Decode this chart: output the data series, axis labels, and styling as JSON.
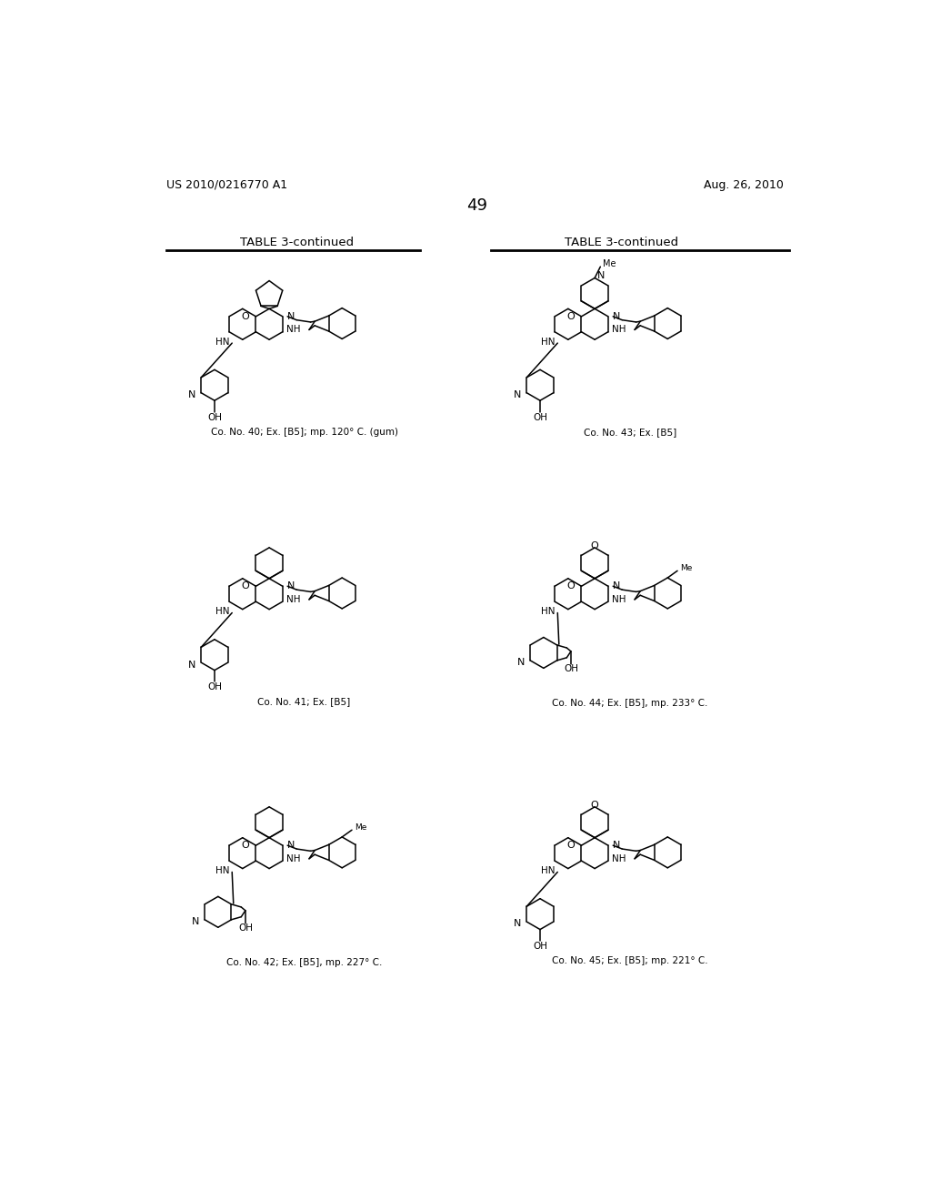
{
  "patent_number": "US 2010/0216770 A1",
  "date": "Aug. 26, 2010",
  "page_number": "49",
  "table_title": "TABLE 3-continued",
  "bg_color": "#ffffff",
  "compounds": [
    {
      "id": "40",
      "label": "Co. No. 40; Ex. [B5]; mp. 120° C. (gum)",
      "col": 0,
      "row": 0
    },
    {
      "id": "43",
      "label": "Co. No. 43; Ex. [B5]",
      "col": 1,
      "row": 0
    },
    {
      "id": "41",
      "label": "Co. No. 41; Ex. [B5]",
      "col": 0,
      "row": 1
    },
    {
      "id": "44",
      "label": "Co. No. 44; Ex. [B5], mp. 233° C.",
      "col": 1,
      "row": 1
    },
    {
      "id": "42",
      "label": "Co. No. 42; Ex. [B5], mp. 227° C.",
      "col": 0,
      "row": 2
    },
    {
      "id": "45",
      "label": "Co. No. 45; Ex. [B5]; mp. 221° C.",
      "col": 1,
      "row": 2
    }
  ]
}
